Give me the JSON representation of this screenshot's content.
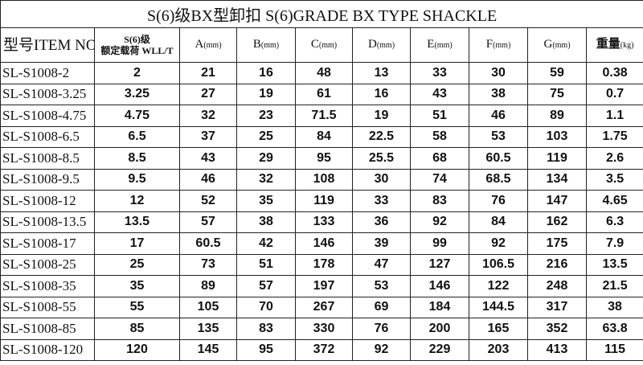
{
  "title": "S(6)级BX型卸扣 S(6)GRADE BX TYPE SHACKLE",
  "headers": {
    "item": "型号ITEM NO.",
    "wll_line1": "S(6)级",
    "wll_line2": "额定载荷 WLL/T",
    "cols": [
      {
        "label": "A",
        "unit": "(mm)"
      },
      {
        "label": "B",
        "unit": "(mm)"
      },
      {
        "label": "C",
        "unit": "(mm)"
      },
      {
        "label": "D",
        "unit": "(mm)"
      },
      {
        "label": "E",
        "unit": "(mm)"
      },
      {
        "label": "F",
        "unit": "(mm)"
      },
      {
        "label": "G",
        "unit": "(mm)"
      },
      {
        "label": "重量",
        "unit": "(kg)"
      }
    ]
  },
  "rows": [
    [
      "SL-S1008-2",
      "2",
      "21",
      "16",
      "48",
      "13",
      "33",
      "30",
      "59",
      "0.38"
    ],
    [
      "SL-S1008-3.25",
      "3.25",
      "27",
      "19",
      "61",
      "16",
      "43",
      "38",
      "75",
      "0.7"
    ],
    [
      "SL-S1008-4.75",
      "4.75",
      "32",
      "23",
      "71.5",
      "19",
      "51",
      "46",
      "89",
      "1.1"
    ],
    [
      "SL-S1008-6.5",
      "6.5",
      "37",
      "25",
      "84",
      "22.5",
      "58",
      "53",
      "103",
      "1.75"
    ],
    [
      "SL-S1008-8.5",
      "8.5",
      "43",
      "29",
      "95",
      "25.5",
      "68",
      "60.5",
      "119",
      "2.6"
    ],
    [
      "SL-S1008-9.5",
      "9.5",
      "46",
      "32",
      "108",
      "30",
      "74",
      "68.5",
      "134",
      "3.5"
    ],
    [
      "SL-S1008-12",
      "12",
      "52",
      "35",
      "119",
      "33",
      "83",
      "76",
      "147",
      "4.65"
    ],
    [
      "SL-S1008-13.5",
      "13.5",
      "57",
      "38",
      "133",
      "36",
      "92",
      "84",
      "162",
      "6.3"
    ],
    [
      "SL-S1008-17",
      "17",
      "60.5",
      "42",
      "146",
      "39",
      "99",
      "92",
      "175",
      "7.9"
    ],
    [
      "SL-S1008-25",
      "25",
      "73",
      "51",
      "178",
      "47",
      "127",
      "106.5",
      "216",
      "13.5"
    ],
    [
      "SL-S1008-35",
      "35",
      "89",
      "57",
      "197",
      "53",
      "146",
      "122",
      "248",
      "21.5"
    ],
    [
      "SL-S1008-55",
      "55",
      "105",
      "70",
      "267",
      "69",
      "184",
      "144.5",
      "317",
      "38"
    ],
    [
      "SL-S1008-85",
      "85",
      "135",
      "83",
      "330",
      "76",
      "200",
      "165",
      "352",
      "63.8"
    ],
    [
      "SL-S1008-120",
      "120",
      "145",
      "95",
      "372",
      "92",
      "229",
      "203",
      "413",
      "115"
    ]
  ]
}
